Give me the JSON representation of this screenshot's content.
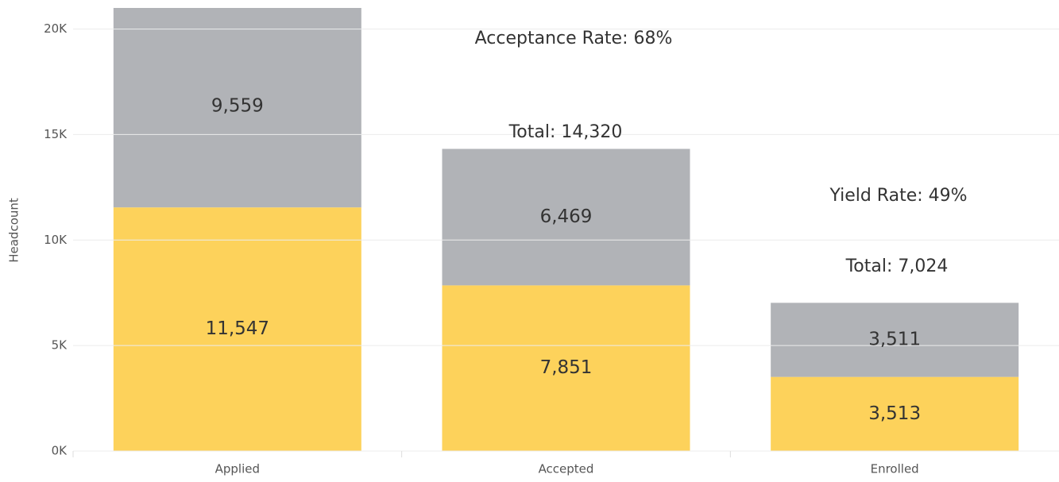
{
  "chart_data": {
    "type": "stacked_bar",
    "categories": [
      "Applied",
      "Accepted",
      "Enrolled"
    ],
    "series": [
      {
        "color": "#fdd25b",
        "values": [
          11547,
          7851,
          3513
        ],
        "value_labels": [
          "11,547",
          "7,851",
          "3,513"
        ]
      },
      {
        "color": "#b1b3b7",
        "values": [
          9559,
          6469,
          3511
        ],
        "value_labels": [
          "9,559",
          "6,469",
          "3,511"
        ]
      }
    ],
    "ylabel": "Headcount",
    "ylim": [
      0,
      21000
    ],
    "yticks": [
      {
        "value": 0,
        "label": "0K"
      },
      {
        "value": 5000,
        "label": "5K"
      },
      {
        "value": 10000,
        "label": "10K"
      },
      {
        "value": 15000,
        "label": "15K"
      },
      {
        "value": 20000,
        "label": "20K"
      }
    ],
    "grid": true,
    "annotations": [
      "Acceptance Rate: 68%",
      "Total: 14,320",
      "Yield Rate: 49%",
      "Total: 7,024"
    ]
  }
}
